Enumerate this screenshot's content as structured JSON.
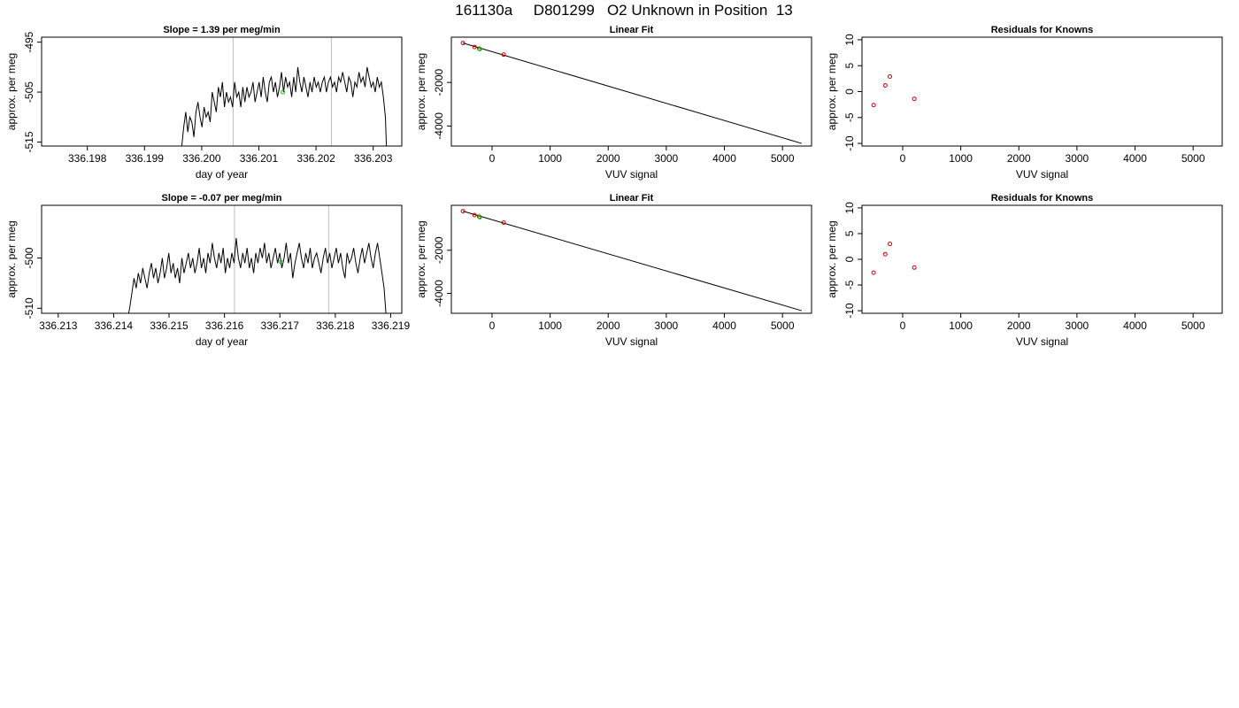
{
  "title": "161130a     D801299   O2 Unknown in Position  13",
  "colors": {
    "unknown": "#00cc00",
    "known": "#cc0000",
    "line": "#000000",
    "vline": "#bebebe"
  },
  "chart_data": [
    {
      "type": "line",
      "title": "Slope =  1.39  per meg/min",
      "xlabel": "day of year",
      "ylabel": "approx. per meg",
      "xlim": [
        336.1972,
        336.2035
      ],
      "ylim": [
        -515.8,
        -494
      ],
      "xticks": [
        "336.198",
        "336.199",
        "336.200",
        "336.201",
        "336.202",
        "336.203"
      ],
      "yticks": [
        "-495",
        "-505",
        "-515"
      ],
      "vlines": [
        336.20055,
        336.20227
      ],
      "marker": {
        "x": 336.20142,
        "y": -505.0
      },
      "trace": {
        "x_start": 336.19965,
        "x_end": 336.20325,
        "y": [
          -516,
          -512,
          -509,
          -513,
          -510,
          -511,
          -514,
          -509,
          -507,
          -510,
          -512,
          -508,
          -510,
          -509,
          -511,
          -505,
          -507,
          -509,
          -504,
          -506,
          -503,
          -508,
          -505,
          -507,
          -506,
          -508,
          -503,
          -506,
          -505,
          -508,
          -504,
          -507,
          -504,
          -506,
          -505,
          -503,
          -507,
          -505,
          -503,
          -506,
          -502,
          -505,
          -507,
          -503,
          -502,
          -505,
          -503,
          -506,
          -504,
          -501,
          -505,
          -502,
          -504,
          -503,
          -506,
          -502,
          -505,
          -500,
          -503,
          -505,
          -502,
          -504,
          -506,
          -503,
          -505,
          -502,
          -504,
          -503,
          -505,
          -503,
          -502,
          -505,
          -503,
          -502,
          -504,
          -503,
          -505,
          -502,
          -503,
          -501,
          -503,
          -505,
          -502,
          -503,
          -506,
          -503,
          -504,
          -501,
          -503,
          -502,
          -504,
          -500,
          -502,
          -504,
          -503,
          -505,
          -502,
          -504,
          -503,
          -506,
          -510,
          -522
        ]
      }
    },
    {
      "type": "scatter",
      "title": "Linear Fit",
      "xlabel": "VUV signal",
      "ylabel": "approx. per meg",
      "xlim": [
        -700,
        5500
      ],
      "ylim": [
        -4920,
        80
      ],
      "xticks": [
        "0",
        "1000",
        "2000",
        "3000",
        "4000",
        "5000"
      ],
      "yticks": [
        "-2000",
        "-4000"
      ],
      "fit_line": {
        "x": [
          -500,
          5330
        ],
        "y": [
          -190,
          -4800
        ]
      },
      "knowns": {
        "x": [
          -500,
          -300,
          -220,
          200
        ],
        "y": [
          -190,
          -370,
          -450,
          -720
        ]
      },
      "unknown": {
        "x": -210,
        "y": -470
      }
    },
    {
      "type": "scatter",
      "title": "Residuals for Knowns",
      "xlabel": "VUV signal",
      "ylabel": "approx. per meg",
      "xlim": [
        -700,
        5500
      ],
      "ylim": [
        -10.5,
        10.5
      ],
      "xticks": [
        "0",
        "1000",
        "2000",
        "3000",
        "4000",
        "5000"
      ],
      "yticks": [
        "-10",
        "-5",
        "0",
        "5",
        "10"
      ],
      "knowns": {
        "x": [
          -500,
          -300,
          -220,
          200
        ],
        "y": [
          -2.6,
          1.2,
          2.9,
          -1.4
        ]
      }
    },
    {
      "type": "line",
      "title": "Slope =  -0.07  per meg/min",
      "xlabel": "day of year",
      "ylabel": "approx. per meg",
      "xlim": [
        336.2127,
        336.2192
      ],
      "ylim": [
        -511,
        -489.5
      ],
      "xticks": [
        "336.213",
        "336.214",
        "336.215",
        "336.216",
        "336.217",
        "336.218",
        "336.219"
      ],
      "yticks": [
        "-500",
        "-510"
      ],
      "vlines": [
        336.21618,
        336.21788
      ],
      "marker": {
        "x": 336.21702,
        "y": -500.8
      },
      "trace": {
        "x_start": 336.21425,
        "x_end": 336.21892,
        "y": [
          -512,
          -510,
          -507,
          -504,
          -506,
          -503,
          -505,
          -502,
          -504,
          -506,
          -503,
          -501,
          -504,
          -502,
          -505,
          -503,
          -500,
          -504,
          -502,
          -499,
          -503,
          -501,
          -504,
          -502,
          -505,
          -500,
          -503,
          -501,
          -499,
          -502,
          -500,
          -503,
          -501,
          -498,
          -502,
          -500,
          -503,
          -499,
          -501,
          -497,
          -500,
          -502,
          -499,
          -501,
          -498,
          -503,
          -500,
          -502,
          -499,
          -501,
          -496,
          -500,
          -502,
          -499,
          -501,
          -498,
          -502,
          -500,
          -503,
          -499,
          -501,
          -498,
          -500,
          -497,
          -501,
          -499,
          -502,
          -500,
          -498,
          -501,
          -499,
          -502,
          -500,
          -497,
          -501,
          -499,
          -504,
          -501,
          -499,
          -497,
          -500,
          -502,
          -499,
          -501,
          -498,
          -502,
          -500,
          -499,
          -501,
          -503,
          -500,
          -498,
          -501,
          -499,
          -502,
          -500,
          -498,
          -501,
          -499,
          -502,
          -504,
          -499,
          -501,
          -500,
          -498,
          -501,
          -503,
          -500,
          -498,
          -501,
          -499,
          -497,
          -500,
          -502,
          -499,
          -497,
          -500,
          -503,
          -506,
          -512
        ]
      }
    },
    {
      "type": "scatter",
      "title": "Linear Fit",
      "xlabel": "VUV signal",
      "ylabel": "approx. per meg",
      "xlim": [
        -700,
        5500
      ],
      "ylim": [
        -4920,
        80
      ],
      "xticks": [
        "0",
        "1000",
        "2000",
        "3000",
        "4000",
        "5000"
      ],
      "yticks": [
        "-2000",
        "-4000"
      ],
      "fit_line": {
        "x": [
          -500,
          5330
        ],
        "y": [
          -190,
          -4800
        ]
      },
      "knowns": {
        "x": [
          -500,
          -300,
          -220,
          200
        ],
        "y": [
          -190,
          -370,
          -450,
          -720
        ]
      },
      "unknown": {
        "x": -210,
        "y": -470
      }
    },
    {
      "type": "scatter",
      "title": "Residuals for Knowns",
      "xlabel": "VUV signal",
      "ylabel": "approx. per meg",
      "xlim": [
        -700,
        5500
      ],
      "ylim": [
        -10.5,
        10.5
      ],
      "xticks": [
        "0",
        "1000",
        "2000",
        "3000",
        "4000",
        "5000"
      ],
      "yticks": [
        "-10",
        "-5",
        "0",
        "5",
        "10"
      ],
      "knowns": {
        "x": [
          -500,
          -300,
          -220,
          200
        ],
        "y": [
          -2.6,
          1.0,
          3.0,
          -1.6
        ]
      }
    }
  ]
}
